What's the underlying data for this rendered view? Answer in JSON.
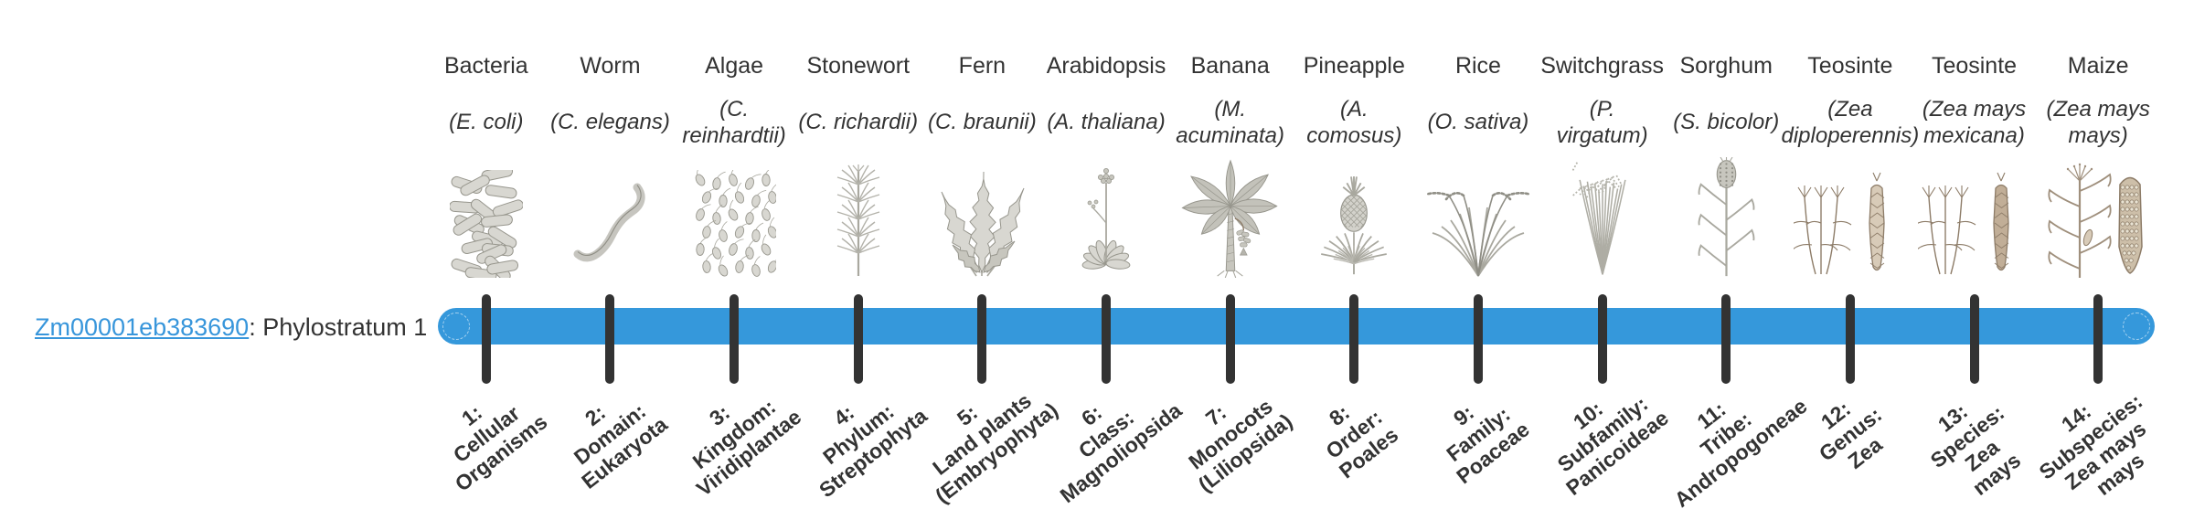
{
  "page": {
    "gene_id": "Zm00001eb383690",
    "gene_suffix": ": Phylostratum 1"
  },
  "colors": {
    "bar": "#3598db",
    "tick": "#333333",
    "link": "#3896db",
    "text": "#333333"
  },
  "timeline": {
    "strata": [
      {
        "organism": "Bacteria",
        "species": "(E. coli)",
        "icon": "bacteria",
        "clade_label": "1:\nCellular\nOrganisms"
      },
      {
        "organism": "Worm",
        "species": "(C. elegans)",
        "icon": "worm",
        "clade_label": "2:\nDomain:\nEukaryota"
      },
      {
        "organism": "Algae",
        "species": "(C.\nreinhardtii)",
        "icon": "algae",
        "clade_label": "3:\nKingdom:\nViridiplantae"
      },
      {
        "organism": "Stonewort",
        "species": "(C. richardii)",
        "icon": "stonewort",
        "clade_label": "4:\nPhylum:\nStreptophyta"
      },
      {
        "organism": "Fern",
        "species": "(C. braunii)",
        "icon": "fern",
        "clade_label": "5:\nLand plants\n(Embryophyta)"
      },
      {
        "organism": "Arabidopsis",
        "species": "(A. thaliana)",
        "icon": "arabidopsis",
        "clade_label": "6:\nClass:\nMagnoliopsida"
      },
      {
        "organism": "Banana",
        "species": "(M.\nacuminata)",
        "icon": "banana",
        "clade_label": "7:\nMonocots\n(Liliopsida)"
      },
      {
        "organism": "Pineapple",
        "species": "(A.\ncomosus)",
        "icon": "pineapple",
        "clade_label": "8:\nOrder:\nPoales"
      },
      {
        "organism": "Rice",
        "species": "(O. sativa)",
        "icon": "rice",
        "clade_label": "9:\nFamily:\nPoaceae"
      },
      {
        "organism": "Switchgrass",
        "species": "(P.\nvirgatum)",
        "icon": "switchgrass",
        "clade_label": "10:\nSubfamily:\nPanicoideae"
      },
      {
        "organism": "Sorghum",
        "species": "(S. bicolor)",
        "icon": "sorghum",
        "clade_label": "11:\nTribe:\nAndropogoneae"
      },
      {
        "organism": "Teosinte",
        "species": "(Zea\ndiploperennis)",
        "icon": "teosinte",
        "clade_label": "12:\nGenus:\nZea"
      },
      {
        "organism": "Teosinte",
        "species": "(Zea mays\nmexicana)",
        "icon": "teosinte2",
        "clade_label": "13:\nSpecies:\nZea\nmays"
      },
      {
        "organism": "Maize",
        "species": "(Zea mays\nmays)",
        "icon": "maize",
        "clade_label": "14:\nSubspecies:\nZea mays\nmays"
      }
    ]
  }
}
